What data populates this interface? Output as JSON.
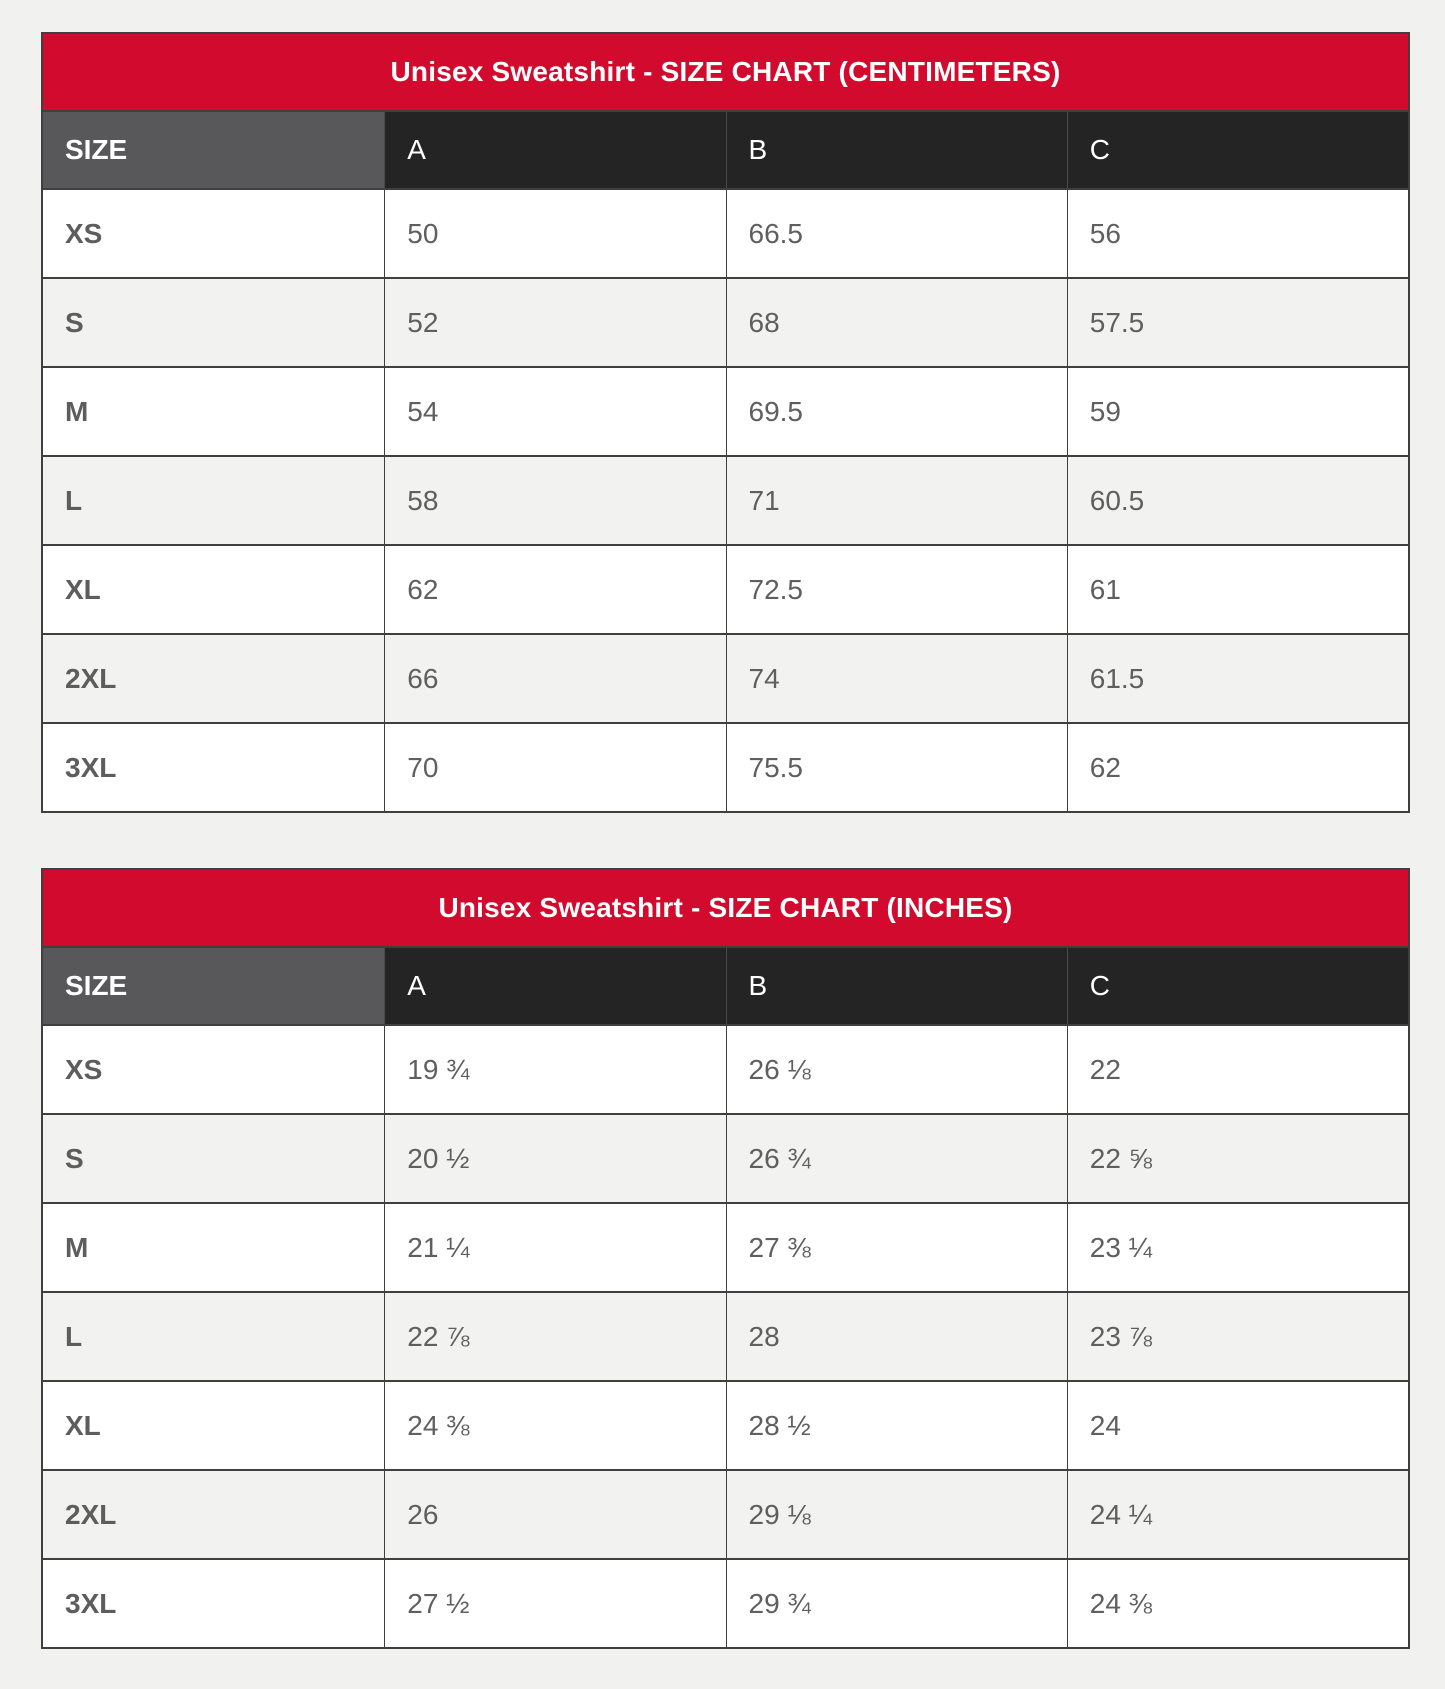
{
  "colors": {
    "banner_red": "#d20a2d",
    "header_dark": "#242424",
    "header_size_gray": "#58585a",
    "row_alt_gray": "#f2f2f1",
    "page_background": "#f1f1ef",
    "border_gray": "#3f3f3f",
    "text_gray": "#5f5f5f"
  },
  "tables": [
    {
      "title": "Unisex Sweatshirt - SIZE CHART (CENTIMETERS)",
      "columns": {
        "size": "SIZE",
        "a": "A",
        "b": "B",
        "c": "C"
      },
      "rows": [
        {
          "size": "XS",
          "a": "50",
          "b": "66.5",
          "c": "56"
        },
        {
          "size": "S",
          "a": "52",
          "b": "68",
          "c": "57.5"
        },
        {
          "size": "M",
          "a": "54",
          "b": "69.5",
          "c": "59"
        },
        {
          "size": "L",
          "a": "58",
          "b": "71",
          "c": "60.5"
        },
        {
          "size": "XL",
          "a": "62",
          "b": "72.5",
          "c": "61"
        },
        {
          "size": "2XL",
          "a": "66",
          "b": "74",
          "c": "61.5"
        },
        {
          "size": "3XL",
          "a": "70",
          "b": "75.5",
          "c": "62"
        }
      ]
    },
    {
      "title": "Unisex Sweatshirt - SIZE CHART (INCHES)",
      "columns": {
        "size": "SIZE",
        "a": "A",
        "b": "B",
        "c": "C"
      },
      "rows": [
        {
          "size": "XS",
          "a": "19 ¾",
          "b": "26 ⅛",
          "c": "22"
        },
        {
          "size": "S",
          "a": "20 ½",
          "b": "26 ¾",
          "c": "22 ⅝"
        },
        {
          "size": "M",
          "a": "21 ¼",
          "b": "27 ⅜",
          "c": "23 ¼"
        },
        {
          "size": "L",
          "a": "22 ⅞",
          "b": "28",
          "c": "23 ⅞"
        },
        {
          "size": "XL",
          "a": "24 ⅜",
          "b": "28 ½",
          "c": "24"
        },
        {
          "size": "2XL",
          "a": "26",
          "b": "29 ⅛",
          "c": "24 ¼"
        },
        {
          "size": "3XL",
          "a": "27 ½",
          "b": "29 ¾",
          "c": "24 ⅜"
        }
      ]
    }
  ]
}
